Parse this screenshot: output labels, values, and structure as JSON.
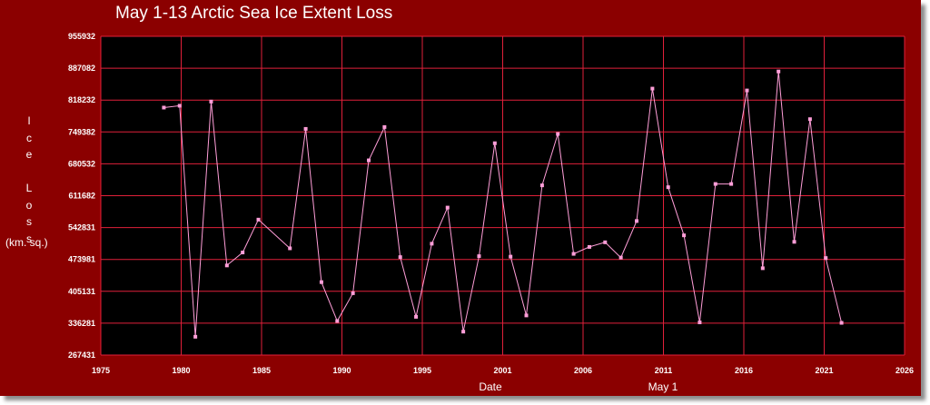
{
  "chart_data": {
    "type": "line",
    "title": "May 1-13 Arctic Sea Ice Extent Loss",
    "ylabel_word": "Ice Loss",
    "ylabel_units": "(km. sq.)",
    "xlabel": "Date",
    "xlabel2": "May 1",
    "xlim": [
      1975,
      2026
    ],
    "ylim": [
      267431,
      955932
    ],
    "x_ticks": [
      "1975",
      "1980",
      "1985",
      "1990",
      "1995",
      "2001",
      "2006",
      "2011",
      "2016",
      "2021",
      "2026"
    ],
    "y_ticks": [
      "955932",
      "887082",
      "818232",
      "749382",
      "680532",
      "611682",
      "542831",
      "473981",
      "405131",
      "336281",
      "267431"
    ],
    "grid": true,
    "colors": {
      "background": "#8b0000",
      "plot_area": "#000000",
      "grid": "#e0203a",
      "line": "#ff9ed8",
      "marker": "#ff9ed8"
    },
    "series": [
      {
        "x": [
          1979,
          1980,
          1981,
          1982,
          1983,
          1984,
          1985,
          1987,
          1988,
          1989,
          1990,
          1991,
          1992,
          1993,
          1994,
          1995,
          1996,
          1997,
          1998,
          1999,
          2000,
          2001,
          2002,
          2003,
          2004,
          2005,
          2006,
          2007,
          2008,
          2009,
          2010,
          2011,
          2012,
          2013,
          2014,
          2015,
          2016,
          2017,
          2018,
          2019,
          2020,
          2021,
          2022
        ],
        "y": [
          802000,
          806000,
          307000,
          815000,
          461000,
          489000,
          560000,
          498000,
          756000,
          425000,
          341000,
          401000,
          688000,
          760000,
          479000,
          350000,
          508000,
          586000,
          318000,
          481000,
          725000,
          480000,
          353000,
          634000,
          745000,
          486000,
          501000,
          511000,
          478000,
          557000,
          843000,
          630000,
          526000,
          338000,
          637000,
          637000,
          839000,
          455000,
          880000,
          512000,
          777000,
          477000,
          337000
        ]
      }
    ]
  }
}
